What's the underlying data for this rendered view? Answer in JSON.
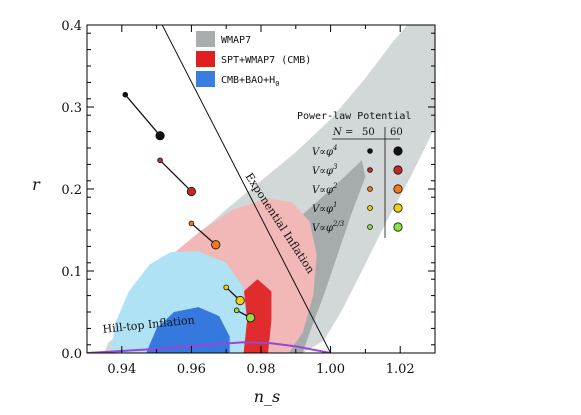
{
  "chart_data": {
    "type": "scatter",
    "xlabel": "n_s",
    "ylabel": "r",
    "xlim": [
      0.93,
      1.03
    ],
    "ylim": [
      0,
      0.4
    ],
    "xticks": [
      0.94,
      0.96,
      0.98,
      1.0,
      1.02
    ],
    "xtick_labels": [
      "0.94",
      "0.96",
      "0.98",
      "1.00",
      "1.02"
    ],
    "yticks": [
      0.0,
      0.1,
      0.2,
      0.3,
      0.4
    ],
    "ytick_labels": [
      "0.0",
      "0.1",
      "0.2",
      "0.3",
      "0.4"
    ],
    "grid": false,
    "legend": {
      "placement": "top-center",
      "entries": [
        {
          "label": "WMAP7",
          "color": "#a8aeae"
        },
        {
          "label": "SPT+WMAP7 (CMB)",
          "color": "#e02020"
        },
        {
          "label": "CMB+BAO+H",
          "subscript": "0",
          "color": "#3a7de0"
        }
      ]
    },
    "regions": [
      {
        "name": "WMAP7 95%",
        "color": "#d2d8d8",
        "outline": [
          [
            0.936,
            0.012
          ],
          [
            0.942,
            0.035
          ],
          [
            0.948,
            0.07
          ],
          [
            0.955,
            0.11
          ],
          [
            0.962,
            0.145
          ],
          [
            0.97,
            0.175
          ],
          [
            0.98,
            0.21
          ],
          [
            0.99,
            0.245
          ],
          [
            1.0,
            0.285
          ],
          [
            1.01,
            0.335
          ],
          [
            1.018,
            0.38
          ],
          [
            1.023,
            0.405
          ],
          [
            1.03,
            0.405
          ],
          [
            1.03,
            0.275
          ],
          [
            1.023,
            0.215
          ],
          [
            1.016,
            0.16
          ],
          [
            1.009,
            0.1
          ],
          [
            1.003,
            0.05
          ],
          [
            0.998,
            0.015
          ],
          [
            0.992,
            0.0
          ],
          [
            0.935,
            0.0
          ]
        ]
      },
      {
        "name": "WMAP7 68%",
        "color": "#a6acac",
        "outline": [
          [
            0.947,
            0.0
          ],
          [
            0.952,
            0.022
          ],
          [
            0.958,
            0.045
          ],
          [
            0.965,
            0.075
          ],
          [
            0.974,
            0.105
          ],
          [
            0.984,
            0.14
          ],
          [
            0.995,
            0.18
          ],
          [
            1.004,
            0.215
          ],
          [
            1.009,
            0.235
          ],
          [
            1.01,
            0.215
          ],
          [
            1.006,
            0.17
          ],
          [
            1.002,
            0.12
          ],
          [
            0.998,
            0.07
          ],
          [
            0.994,
            0.025
          ],
          [
            0.992,
            0.0
          ]
        ]
      },
      {
        "name": "SPT+WMAP7 (CMB) 95%",
        "color": "#f2b7b7",
        "outline": [
          [
            0.945,
            0.0
          ],
          [
            0.943,
            0.04
          ],
          [
            0.946,
            0.08
          ],
          [
            0.953,
            0.115
          ],
          [
            0.963,
            0.15
          ],
          [
            0.972,
            0.175
          ],
          [
            0.982,
            0.188
          ],
          [
            0.989,
            0.184
          ],
          [
            0.994,
            0.16
          ],
          [
            0.996,
            0.12
          ],
          [
            0.995,
            0.07
          ],
          [
            0.992,
            0.025
          ],
          [
            0.988,
            0.0
          ]
        ]
      },
      {
        "name": "SPT+WMAP7 (CMB) 68%",
        "color": "#e02c2c",
        "outline": [
          [
            0.974,
            0.0
          ],
          [
            0.972,
            0.045
          ],
          [
            0.975,
            0.075
          ],
          [
            0.979,
            0.09
          ],
          [
            0.983,
            0.075
          ],
          [
            0.983,
            0.04
          ],
          [
            0.982,
            0.0
          ]
        ]
      },
      {
        "name": "CMB+BAO+H0 95%",
        "color": "#aee2f4",
        "outline": [
          [
            0.937,
            0.0
          ],
          [
            0.938,
            0.035
          ],
          [
            0.942,
            0.075
          ],
          [
            0.948,
            0.108
          ],
          [
            0.954,
            0.123
          ],
          [
            0.962,
            0.124
          ],
          [
            0.97,
            0.11
          ],
          [
            0.975,
            0.08
          ],
          [
            0.976,
            0.04
          ],
          [
            0.975,
            0.0
          ]
        ]
      },
      {
        "name": "CMB+BAO+H0 68%",
        "color": "#3578de",
        "outline": [
          [
            0.947,
            0.0
          ],
          [
            0.95,
            0.03
          ],
          [
            0.955,
            0.05
          ],
          [
            0.962,
            0.056
          ],
          [
            0.968,
            0.045
          ],
          [
            0.971,
            0.02
          ],
          [
            0.971,
            0.0
          ]
        ]
      }
    ],
    "lines": [
      {
        "name": "Exponential Inflation",
        "color": "#111111",
        "points": [
          [
            0.951,
            0.405
          ],
          [
            1.0,
            0.0
          ]
        ]
      },
      {
        "name": "Hill-top Inflation",
        "color": "#9a45d8",
        "points": [
          [
            0.93,
            0.0
          ],
          [
            0.95,
            0.005
          ],
          [
            0.965,
            0.01
          ],
          [
            0.975,
            0.013
          ],
          [
            0.983,
            0.012
          ],
          [
            0.99,
            0.008
          ],
          [
            0.995,
            0.004
          ],
          [
            1.0,
            0.0
          ]
        ]
      }
    ],
    "series": [
      {
        "name": "φ^4",
        "color": "#111111",
        "points": [
          [
            0.941,
            0.315
          ],
          [
            0.951,
            0.265
          ]
        ]
      },
      {
        "name": "φ^3",
        "color": "#c0282a",
        "points": [
          [
            0.951,
            0.235
          ],
          [
            0.96,
            0.197
          ]
        ]
      },
      {
        "name": "φ^2",
        "color": "#f07a1a",
        "points": [
          [
            0.96,
            0.158
          ],
          [
            0.967,
            0.132
          ]
        ]
      },
      {
        "name": "φ^1",
        "color": "#f2cf10",
        "points": [
          [
            0.97,
            0.08
          ],
          [
            0.974,
            0.064
          ]
        ]
      },
      {
        "name": "φ^2/3",
        "color": "#8fe040",
        "points": [
          [
            0.973,
            0.052
          ],
          [
            0.977,
            0.043
          ]
        ]
      }
    ],
    "annotations": [
      {
        "text": "Exponential Inflation"
      },
      {
        "text": "Hill-top Inflation"
      }
    ],
    "power_law_key": {
      "title": "Power-law Potential",
      "header_n": "N",
      "header_eq": "=",
      "header_50": "50",
      "header_60": "60",
      "rows": [
        {
          "label": "V∝φ",
          "exp": "4",
          "color": "#111111"
        },
        {
          "label": "V∝φ",
          "exp": "3",
          "color": "#c0282a"
        },
        {
          "label": "V∝φ",
          "exp": "2",
          "color": "#f07a1a"
        },
        {
          "label": "V∝φ",
          "exp": "1",
          "color": "#f2cf10"
        },
        {
          "label": "V∝φ",
          "exp": "2/3",
          "color": "#8fe040"
        }
      ]
    }
  }
}
